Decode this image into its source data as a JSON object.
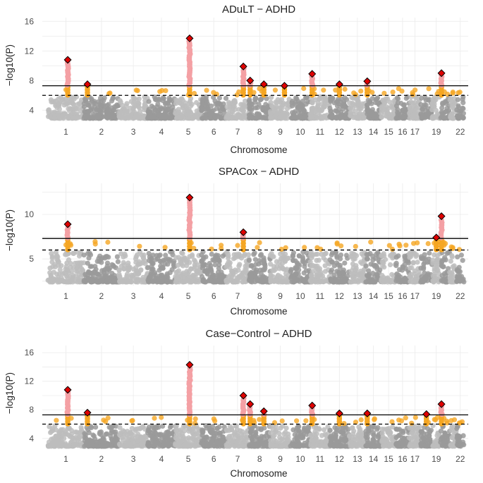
{
  "chart_data": [
    {
      "type": "scatter",
      "subtype": "manhattan",
      "title": "ADuLT − ADHD",
      "xlabel": "Chromosome",
      "ylabel": "−log10(P)",
      "y_ticks": [
        4,
        8,
        12,
        16
      ],
      "ylim": [
        2.5,
        16.5
      ],
      "genome_wide_threshold": 7.3,
      "suggestive_threshold": 6.0,
      "grid": true,
      "chromosome_labels": [
        "1",
        "2",
        "3",
        "4",
        "5",
        "6",
        "7",
        "8",
        "9",
        "10",
        "11",
        "12",
        "13",
        "14",
        "15",
        "16",
        "17",
        "19",
        "22"
      ],
      "lead_snps": [
        {
          "chr": 1,
          "pos": 0.55,
          "value": 10.8
        },
        {
          "chr": 2,
          "pos": 0.1,
          "value": 7.5
        },
        {
          "chr": 5,
          "pos": 0.55,
          "value": 13.7
        },
        {
          "chr": 7,
          "pos": 0.75,
          "value": 9.9
        },
        {
          "chr": 8,
          "pos": 0.05,
          "value": 8.0
        },
        {
          "chr": 8,
          "pos": 0.7,
          "value": 7.5
        },
        {
          "chr": 9,
          "pos": 0.7,
          "value": 7.3
        },
        {
          "chr": 11,
          "pos": 0.1,
          "value": 8.9
        },
        {
          "chr": 12,
          "pos": 0.5,
          "value": 7.5
        },
        {
          "chr": 14,
          "pos": 0.1,
          "value": 7.9
        },
        {
          "chr": 20,
          "pos": 0.1,
          "value": 9.0
        }
      ]
    },
    {
      "type": "scatter",
      "subtype": "manhattan",
      "title": "SPACox − ADHD",
      "xlabel": "Chromosome",
      "ylabel": "−log10(P)",
      "y_ticks": [
        5,
        10
      ],
      "ylim": [
        2.0,
        13.5
      ],
      "genome_wide_threshold": 7.3,
      "suggestive_threshold": 6.0,
      "grid": true,
      "chromosome_labels": [
        "1",
        "2",
        "3",
        "4",
        "5",
        "6",
        "7",
        "8",
        "9",
        "10",
        "11",
        "12",
        "13",
        "14",
        "15",
        "16",
        "17",
        "19",
        "22"
      ],
      "lead_snps": [
        {
          "chr": 1,
          "pos": 0.55,
          "value": 8.9
        },
        {
          "chr": 5,
          "pos": 0.55,
          "value": 11.9
        },
        {
          "chr": 7,
          "pos": 0.75,
          "value": 8.0
        },
        {
          "chr": 19,
          "pos": 0.5,
          "value": 7.4
        },
        {
          "chr": 20,
          "pos": 0.1,
          "value": 9.8
        }
      ]
    },
    {
      "type": "scatter",
      "subtype": "manhattan",
      "title": "Case−Control − ADHD",
      "xlabel": "Chromosome",
      "ylabel": "−log10(P)",
      "y_ticks": [
        4,
        8,
        12,
        16
      ],
      "ylim": [
        2.5,
        17.0
      ],
      "genome_wide_threshold": 7.3,
      "suggestive_threshold": 6.0,
      "grid": true,
      "chromosome_labels": [
        "1",
        "2",
        "3",
        "4",
        "5",
        "6",
        "7",
        "8",
        "9",
        "10",
        "11",
        "12",
        "13",
        "14",
        "15",
        "16",
        "17",
        "19",
        "22"
      ],
      "lead_snps": [
        {
          "chr": 1,
          "pos": 0.55,
          "value": 10.8
        },
        {
          "chr": 2,
          "pos": 0.1,
          "value": 7.6
        },
        {
          "chr": 5,
          "pos": 0.55,
          "value": 14.3
        },
        {
          "chr": 7,
          "pos": 0.75,
          "value": 10.0
        },
        {
          "chr": 8,
          "pos": 0.05,
          "value": 8.8
        },
        {
          "chr": 8,
          "pos": 0.7,
          "value": 7.8
        },
        {
          "chr": 11,
          "pos": 0.1,
          "value": 8.6
        },
        {
          "chr": 12,
          "pos": 0.5,
          "value": 7.5
        },
        {
          "chr": 14,
          "pos": 0.1,
          "value": 7.5
        },
        {
          "chr": 18,
          "pos": 0.5,
          "value": 7.4
        },
        {
          "chr": 20,
          "pos": 0.1,
          "value": 8.8
        }
      ]
    }
  ],
  "colors": {
    "chr_light": "#bdbdbd",
    "chr_dark": "#9a9a9a",
    "suggestive_point": "#f5a623",
    "significant_point": "#f4a0a4",
    "lead_snp_fill": "#e00000",
    "lead_snp_stroke": "#000000",
    "threshold_line": "#000000"
  }
}
